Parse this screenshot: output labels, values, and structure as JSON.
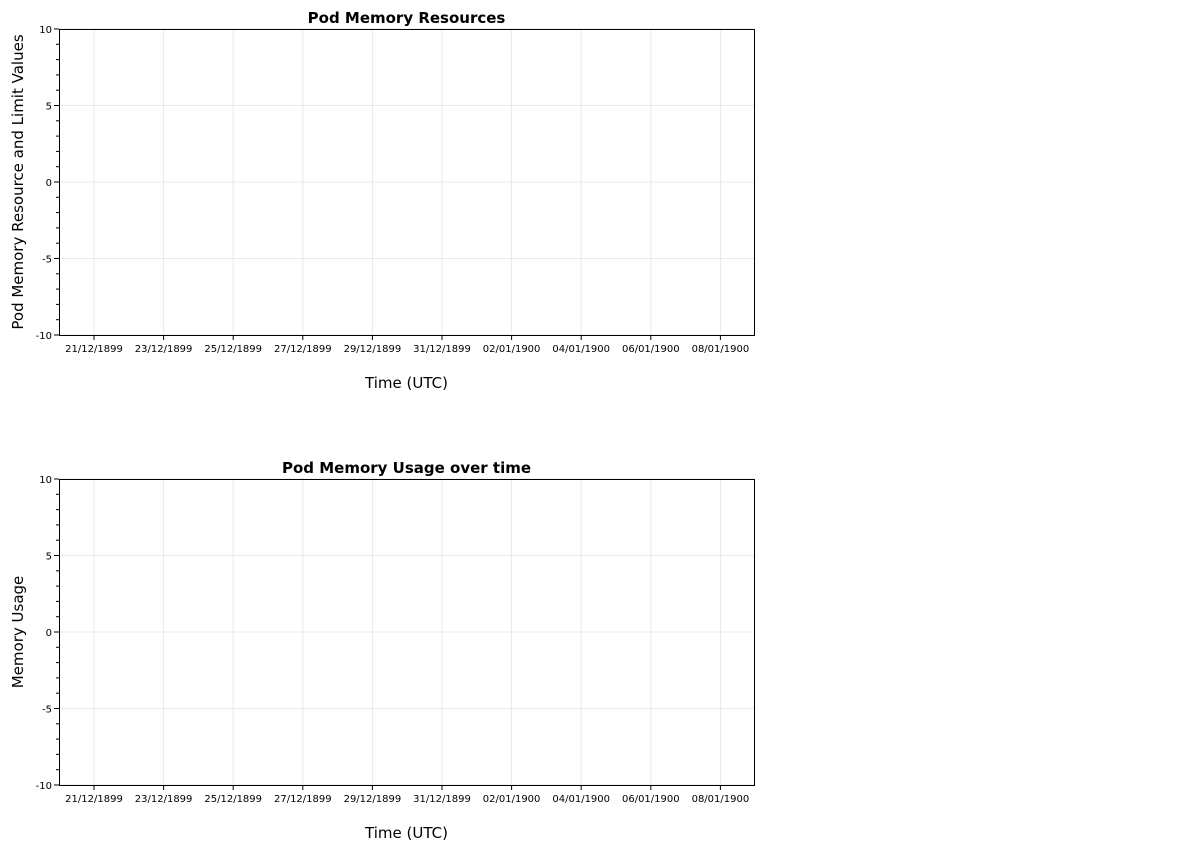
{
  "chart_data": [
    {
      "type": "line",
      "title": "Pod Memory Resources",
      "xlabel": "Time (UTC)",
      "ylabel": "Pod Memory Resource and Limit Values",
      "ylim": [
        -10,
        10
      ],
      "y_ticks": [
        10,
        5,
        0,
        -5,
        -10
      ],
      "x_ticks": [
        "21/12/1899",
        "23/12/1899",
        "25/12/1899",
        "27/12/1899",
        "29/12/1899",
        "31/12/1899",
        "02/01/1900",
        "04/01/1900",
        "06/01/1900",
        "08/01/1900"
      ],
      "grid": true,
      "series": []
    },
    {
      "type": "line",
      "title": "Pod Memory Usage over time",
      "xlabel": "Time (UTC)",
      "ylabel": "Memory Usage",
      "ylim": [
        -10,
        10
      ],
      "y_ticks": [
        10,
        5,
        0,
        -5,
        -10
      ],
      "x_ticks": [
        "21/12/1899",
        "23/12/1899",
        "25/12/1899",
        "27/12/1899",
        "29/12/1899",
        "31/12/1899",
        "02/01/1900",
        "04/01/1900",
        "06/01/1900",
        "08/01/1900"
      ],
      "grid": true,
      "series": []
    }
  ],
  "colors": {
    "axis": "#000000",
    "grid": "#e8e8e8",
    "background": "#ffffff"
  }
}
